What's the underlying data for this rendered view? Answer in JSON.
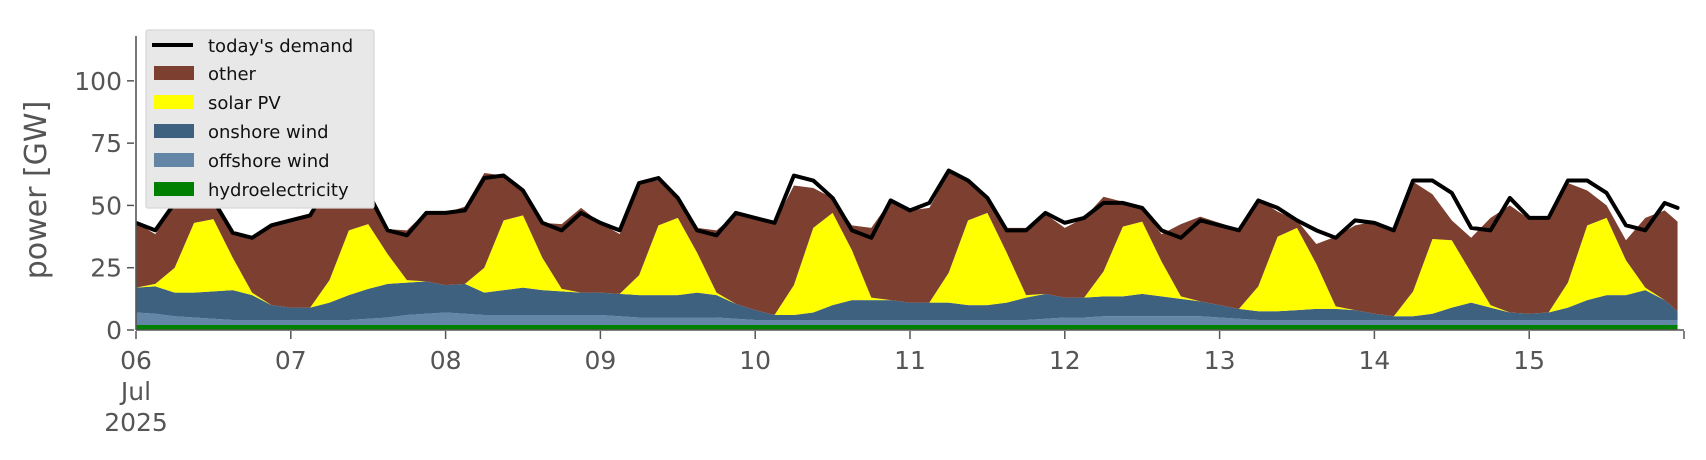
{
  "chart_data": {
    "type": "area",
    "ylabel": "power [GW]",
    "ylim": [
      0,
      118
    ],
    "xlim": [
      "2025-07-06T00:00",
      "2025-07-16T00:00"
    ],
    "y_ticks": [
      0,
      25,
      50,
      75,
      100
    ],
    "x_ticks": [
      {
        "x": "2025-07-06T00:00",
        "lines": [
          "06",
          "Jul",
          "2025"
        ]
      },
      {
        "x": "2025-07-07T00:00",
        "lines": [
          "07"
        ]
      },
      {
        "x": "2025-07-08T00:00",
        "lines": [
          "08"
        ]
      },
      {
        "x": "2025-07-09T00:00",
        "lines": [
          "09"
        ]
      },
      {
        "x": "2025-07-10T00:00",
        "lines": [
          "10"
        ]
      },
      {
        "x": "2025-07-11T00:00",
        "lines": [
          "11"
        ]
      },
      {
        "x": "2025-07-12T00:00",
        "lines": [
          "12"
        ]
      },
      {
        "x": "2025-07-13T00:00",
        "lines": [
          "13"
        ]
      },
      {
        "x": "2025-07-14T00:00",
        "lines": [
          "14"
        ]
      },
      {
        "x": "2025-07-15T00:00",
        "lines": [
          "15"
        ]
      }
    ],
    "legend": {
      "placement": "top-left",
      "entries": [
        "today's demand",
        "other",
        "solar PV",
        "onshore wind",
        "offshore wind",
        "hydroelectricity"
      ]
    },
    "colors": {
      "demand": "#000000",
      "other": "#7d4030",
      "solar": "#ffff00",
      "onshore": "#3e6180",
      "offshore": "#6386a7",
      "hydro": "#008000"
    },
    "x": [
      "2025-07-06T00:00",
      "2025-07-06T03:00",
      "2025-07-06T06:00",
      "2025-07-06T09:00",
      "2025-07-06T12:00",
      "2025-07-06T15:00",
      "2025-07-06T18:00",
      "2025-07-06T21:00",
      "2025-07-07T00:00",
      "2025-07-07T03:00",
      "2025-07-07T06:00",
      "2025-07-07T09:00",
      "2025-07-07T12:00",
      "2025-07-07T15:00",
      "2025-07-07T18:00",
      "2025-07-07T21:00",
      "2025-07-08T00:00",
      "2025-07-08T03:00",
      "2025-07-08T06:00",
      "2025-07-08T09:00",
      "2025-07-08T12:00",
      "2025-07-08T15:00",
      "2025-07-08T18:00",
      "2025-07-08T21:00",
      "2025-07-09T00:00",
      "2025-07-09T03:00",
      "2025-07-09T06:00",
      "2025-07-09T09:00",
      "2025-07-09T12:00",
      "2025-07-09T15:00",
      "2025-07-09T18:00",
      "2025-07-09T21:00",
      "2025-07-10T00:00",
      "2025-07-10T03:00",
      "2025-07-10T06:00",
      "2025-07-10T09:00",
      "2025-07-10T12:00",
      "2025-07-10T15:00",
      "2025-07-10T18:00",
      "2025-07-10T21:00",
      "2025-07-11T00:00",
      "2025-07-11T03:00",
      "2025-07-11T06:00",
      "2025-07-11T09:00",
      "2025-07-11T12:00",
      "2025-07-11T15:00",
      "2025-07-11T18:00",
      "2025-07-11T21:00",
      "2025-07-12T00:00",
      "2025-07-12T03:00",
      "2025-07-12T06:00",
      "2025-07-12T09:00",
      "2025-07-12T12:00",
      "2025-07-12T15:00",
      "2025-07-12T18:00",
      "2025-07-12T21:00",
      "2025-07-13T00:00",
      "2025-07-13T03:00",
      "2025-07-13T06:00",
      "2025-07-13T09:00",
      "2025-07-13T12:00",
      "2025-07-13T15:00",
      "2025-07-13T18:00",
      "2025-07-13T21:00",
      "2025-07-14T00:00",
      "2025-07-14T03:00",
      "2025-07-14T06:00",
      "2025-07-14T09:00",
      "2025-07-14T12:00",
      "2025-07-14T15:00",
      "2025-07-14T18:00",
      "2025-07-14T21:00",
      "2025-07-15T00:00",
      "2025-07-15T03:00",
      "2025-07-15T06:00",
      "2025-07-15T09:00",
      "2025-07-15T12:00",
      "2025-07-15T15:00",
      "2025-07-15T18:00",
      "2025-07-15T21:00",
      "2025-07-15T23:00"
    ],
    "series": [
      {
        "name": "hydroelectricity",
        "values": [
          2,
          2,
          2,
          2,
          2,
          2,
          2,
          2,
          2,
          2,
          2,
          2,
          2,
          2,
          2,
          2,
          2,
          2,
          2,
          2,
          2,
          2,
          2,
          2,
          2,
          2,
          2,
          2,
          2,
          2,
          2,
          2,
          2,
          2,
          2,
          2,
          2,
          2,
          2,
          2,
          2,
          2,
          2,
          2,
          2,
          2,
          2,
          2,
          2,
          2,
          2,
          2,
          2,
          2,
          2,
          2,
          2,
          2,
          2,
          2,
          2,
          2,
          2,
          2,
          2,
          2,
          2,
          2,
          2,
          2,
          2,
          2,
          2,
          2,
          2,
          2,
          2,
          2,
          2,
          2,
          2
        ]
      },
      {
        "name": "offshore wind",
        "values": [
          5,
          4.5,
          3.5,
          3,
          2.5,
          2,
          2,
          2,
          2,
          2,
          2,
          2,
          2.5,
          3,
          4,
          4.5,
          5,
          4.5,
          4,
          4,
          4,
          4,
          4,
          4,
          4,
          3.5,
          3,
          3,
          3,
          3,
          3,
          2.5,
          2,
          2,
          2,
          2,
          2,
          2,
          2,
          2,
          2,
          2,
          2,
          2,
          2,
          2,
          2,
          2.5,
          3,
          3,
          3.5,
          3.5,
          3.5,
          3.5,
          3.5,
          3.5,
          3,
          2.5,
          2,
          2,
          2,
          2,
          2,
          2,
          2,
          2,
          2,
          2,
          2,
          2,
          2,
          2,
          2,
          2,
          2,
          2,
          2,
          2,
          2,
          2,
          2
        ]
      },
      {
        "name": "onshore wind",
        "values": [
          10,
          11,
          9.5,
          10,
          11,
          12,
          10,
          6,
          5,
          5,
          7,
          10,
          12,
          13.5,
          13,
          13,
          11,
          12,
          9,
          10,
          11,
          10,
          9.5,
          9,
          9,
          9,
          9,
          9,
          9,
          10,
          9,
          6,
          4,
          2,
          2,
          3,
          6,
          8,
          8,
          8,
          7,
          7,
          7,
          6,
          6,
          7,
          9,
          10,
          8,
          8,
          8,
          8,
          9,
          8,
          7,
          6,
          5,
          4,
          3.5,
          3.5,
          4,
          4.5,
          4.5,
          4,
          2.5,
          1.5,
          1.5,
          2.5,
          5,
          7,
          5,
          3,
          2.5,
          3,
          5,
          8,
          10,
          10,
          12,
          8,
          3.5
        ]
      },
      {
        "name": "solar PV",
        "values": [
          0,
          1,
          10,
          28,
          29,
          13,
          1,
          0,
          0,
          0,
          9,
          26,
          26,
          12,
          1,
          0,
          0,
          0,
          10,
          28,
          29,
          13,
          1,
          0,
          0,
          0,
          8,
          28,
          31,
          16,
          1,
          0,
          0,
          0,
          12,
          34,
          37,
          20,
          1,
          0,
          0,
          0,
          12,
          34,
          37,
          20,
          1,
          0,
          0,
          0,
          10,
          28,
          29,
          14,
          1,
          0,
          0,
          0,
          10,
          30,
          33,
          18,
          1,
          0,
          0,
          0,
          10,
          30,
          27,
          12,
          1,
          0,
          0,
          0,
          10,
          30,
          31,
          14,
          1,
          0,
          0
        ]
      },
      {
        "name": "other",
        "values": [
          26,
          20,
          26,
          18,
          8,
          10,
          22,
          32,
          35,
          37,
          38,
          22,
          12,
          10,
          20,
          28,
          29,
          31,
          38,
          18,
          10,
          14,
          26,
          34,
          28,
          24,
          37,
          18,
          8,
          10,
          25,
          36,
          37,
          37,
          40,
          16,
          6,
          10,
          28,
          40,
          37,
          38,
          40,
          16,
          6,
          10,
          27,
          32,
          28,
          32,
          30,
          10,
          5,
          11,
          29,
          34,
          33,
          32,
          35,
          10,
          3,
          8,
          28,
          34,
          37,
          35,
          44,
          18,
          8,
          14,
          35,
          43,
          38,
          38,
          40,
          14,
          5,
          8,
          28,
          36,
          36
        ]
      },
      {
        "name": "today's demand",
        "values": [
          43,
          40,
          51,
          61,
          52,
          39,
          37,
          42,
          44,
          46,
          59,
          62,
          55,
          40,
          38,
          47,
          47,
          48,
          61,
          62,
          56,
          43,
          40,
          47,
          43,
          40,
          59,
          61,
          53,
          40,
          38,
          47,
          45,
          43,
          62,
          60,
          53,
          40,
          37,
          52,
          48,
          51,
          64,
          60,
          53,
          40,
          40,
          47,
          43,
          45,
          51,
          51,
          49,
          40,
          37,
          44,
          42,
          40,
          52,
          49,
          44,
          40,
          37,
          44,
          43,
          40,
          60,
          60,
          55,
          41,
          40,
          53,
          45,
          45,
          60,
          60,
          55,
          42,
          40,
          51,
          49
        ]
      }
    ]
  }
}
